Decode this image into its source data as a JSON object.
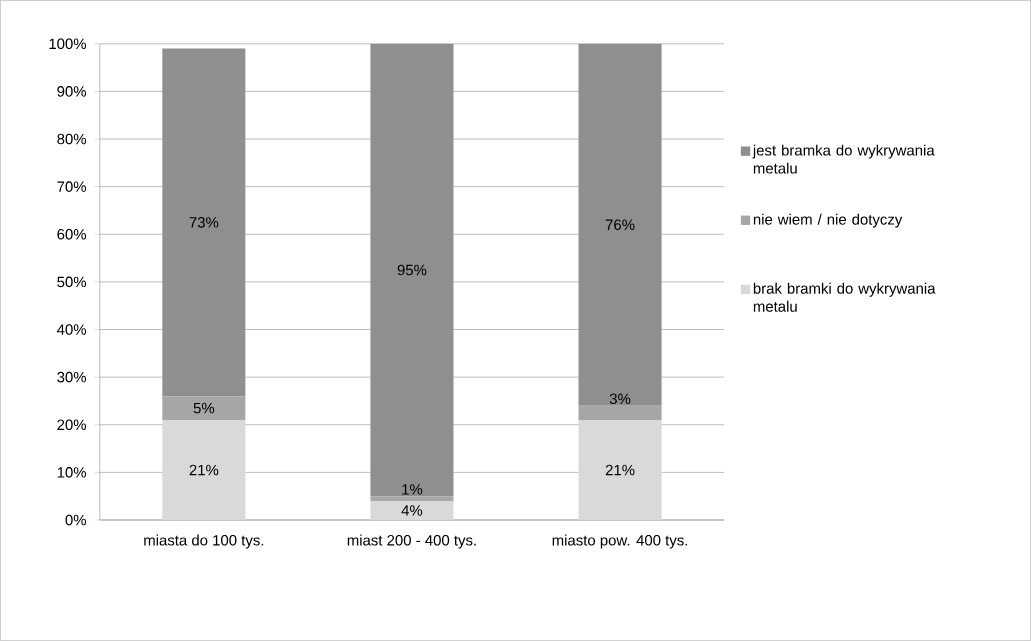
{
  "chart_data": {
    "type": "bar",
    "stacked": true,
    "categories": [
      "miasta do 100 tys.",
      "miast 200 - 400 tys.",
      "miasto pow. 400 tys."
    ],
    "series": [
      {
        "name": "brak bramki do wykrywania metalu",
        "color": "#d9d9d9",
        "values": [
          21,
          4,
          21
        ],
        "value_labels": [
          "21%",
          "4%",
          "21%"
        ]
      },
      {
        "name": "nie wiem / nie dotyczy",
        "color": "#a6a6a6",
        "values": [
          5,
          1,
          3
        ],
        "value_labels": [
          "5%",
          "1%",
          "3%"
        ]
      },
      {
        "name": "jest bramka do wykrywania metalu",
        "color": "#8e8f91",
        "values": [
          73,
          95,
          76
        ],
        "value_labels": [
          "73%",
          "95%",
          "76%"
        ]
      }
    ],
    "ylim": [
      0,
      100
    ],
    "yticks": [
      {
        "value": 0,
        "label": "0%"
      },
      {
        "value": 10,
        "label": "10%"
      },
      {
        "value": 20,
        "label": "20%"
      },
      {
        "value": 30,
        "label": "30%"
      },
      {
        "value": 40,
        "label": "40%"
      },
      {
        "value": 50,
        "label": "50%"
      },
      {
        "value": 60,
        "label": "60%"
      },
      {
        "value": 70,
        "label": "70%"
      },
      {
        "value": 80,
        "label": "80%"
      },
      {
        "value": 90,
        "label": "90%"
      },
      {
        "value": 100,
        "label": "100%"
      }
    ],
    "grid": "y",
    "legend": "right"
  }
}
